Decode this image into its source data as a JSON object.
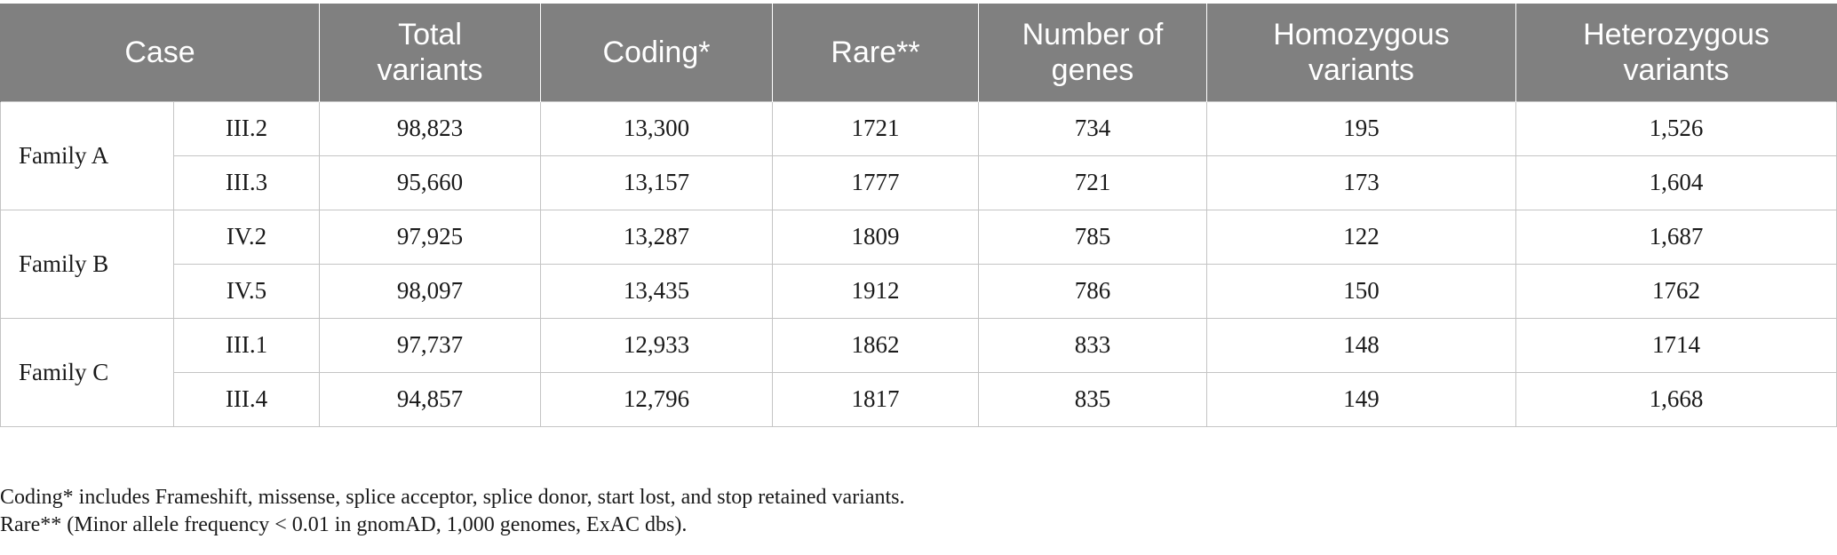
{
  "table": {
    "headers": {
      "case": "Case",
      "total": [
        "Total",
        "variants"
      ],
      "coding": "Coding*",
      "rare": "Rare**",
      "genes": [
        "Number of",
        "genes"
      ],
      "homozygous": [
        "Homozygous",
        "variants"
      ],
      "heterozygous": [
        "Heterozygous",
        "variants"
      ]
    },
    "families": [
      {
        "name": "Family A",
        "rows": [
          {
            "sample": "III.2",
            "total": "98,823",
            "coding": "13,300",
            "rare": "1721",
            "genes": "734",
            "homozygous": "195",
            "heterozygous": "1,526"
          },
          {
            "sample": "III.3",
            "total": "95,660",
            "coding": "13,157",
            "rare": "1777",
            "genes": "721",
            "homozygous": "173",
            "heterozygous": "1,604"
          }
        ]
      },
      {
        "name": "Family B",
        "rows": [
          {
            "sample": "IV.2",
            "total": "97,925",
            "coding": "13,287",
            "rare": "1809",
            "genes": "785",
            "homozygous": "122",
            "heterozygous": "1,687"
          },
          {
            "sample": "IV.5",
            "total": "98,097",
            "coding": "13,435",
            "rare": "1912",
            "genes": "786",
            "homozygous": "150",
            "heterozygous": "1762"
          }
        ]
      },
      {
        "name": "Family C",
        "rows": [
          {
            "sample": "III.1",
            "total": "97,737",
            "coding": "12,933",
            "rare": "1862",
            "genes": "833",
            "homozygous": "148",
            "heterozygous": "1714"
          },
          {
            "sample": "III.4",
            "total": "94,857",
            "coding": "12,796",
            "rare": "1817",
            "genes": "835",
            "homozygous": "149",
            "heterozygous": "1,668"
          }
        ]
      }
    ]
  },
  "footnotes": {
    "coding": "Coding* includes Frameshift, missense, splice acceptor, splice donor, start lost, and stop retained variants.",
    "rare": "Rare** (Minor allele frequency < 0.01 in gnomAD, 1,000 genomes, ExAC dbs)."
  }
}
